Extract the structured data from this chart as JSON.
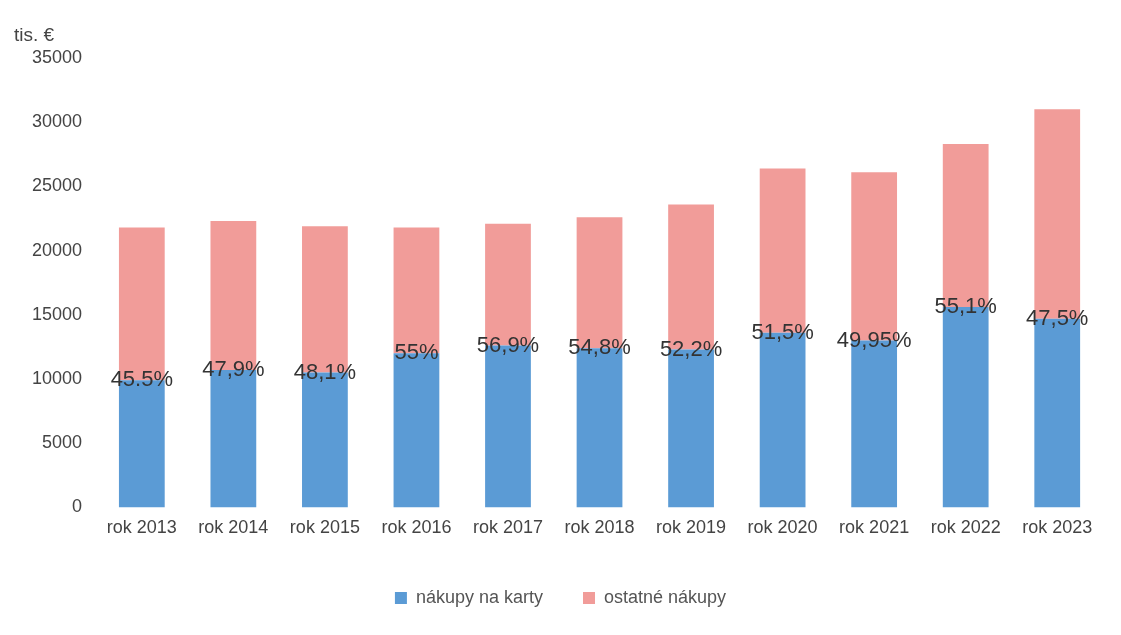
{
  "chart_data": {
    "type": "bar",
    "stacked": true,
    "ylabel": "tis. €",
    "categories": [
      "rok 2013",
      "rok 2014",
      "rok 2015",
      "rok 2016",
      "rok 2017",
      "rok 2018",
      "rok 2019",
      "rok 2020",
      "rok 2021",
      "rok 2022",
      "rok 2023"
    ],
    "series": [
      {
        "name": "nákupy na karty",
        "color": "#5b9bd5",
        "values": [
          9900,
          10700,
          10500,
          12000,
          12600,
          12400,
          12300,
          13600,
          13000,
          15600,
          14700
        ]
      },
      {
        "name": "ostatné nákupy",
        "color": "#f19c99",
        "values": [
          11900,
          11600,
          11400,
          9800,
          9500,
          10200,
          11300,
          12800,
          13100,
          12700,
          16300
        ]
      }
    ],
    "ylim": [
      0,
      35000
    ],
    "yticks": [
      0,
      5000,
      10000,
      15000,
      20000,
      25000,
      30000,
      35000
    ],
    "grid": false,
    "legend": "bottom",
    "annotations": [
      {
        "text": "45.5%",
        "x": "rok 2013",
        "y": 9900
      },
      {
        "text": "47,9%",
        "x": "rok 2014",
        "y": 10700
      },
      {
        "text": "48,1%",
        "x": "rok 2015",
        "y": 10500
      },
      {
        "text": "55%",
        "x": "rok 2016",
        "y": 12000
      },
      {
        "text": "56,9%",
        "x": "rok 2017",
        "y": 12600
      },
      {
        "text": "54,8%",
        "x": "rok 2018",
        "y": 12400
      },
      {
        "text": "52,2%",
        "x": "rok 2019",
        "y": 12300
      },
      {
        "text": "51,5%",
        "x": "rok 2020",
        "y": 13600
      },
      {
        "text": "49,95%",
        "x": "rok 2021",
        "y": 13000
      },
      {
        "text": "55,1%",
        "x": "rok 2022",
        "y": 15600
      },
      {
        "text": "47,5%",
        "x": "rok 2023",
        "y": 14700
      }
    ]
  }
}
